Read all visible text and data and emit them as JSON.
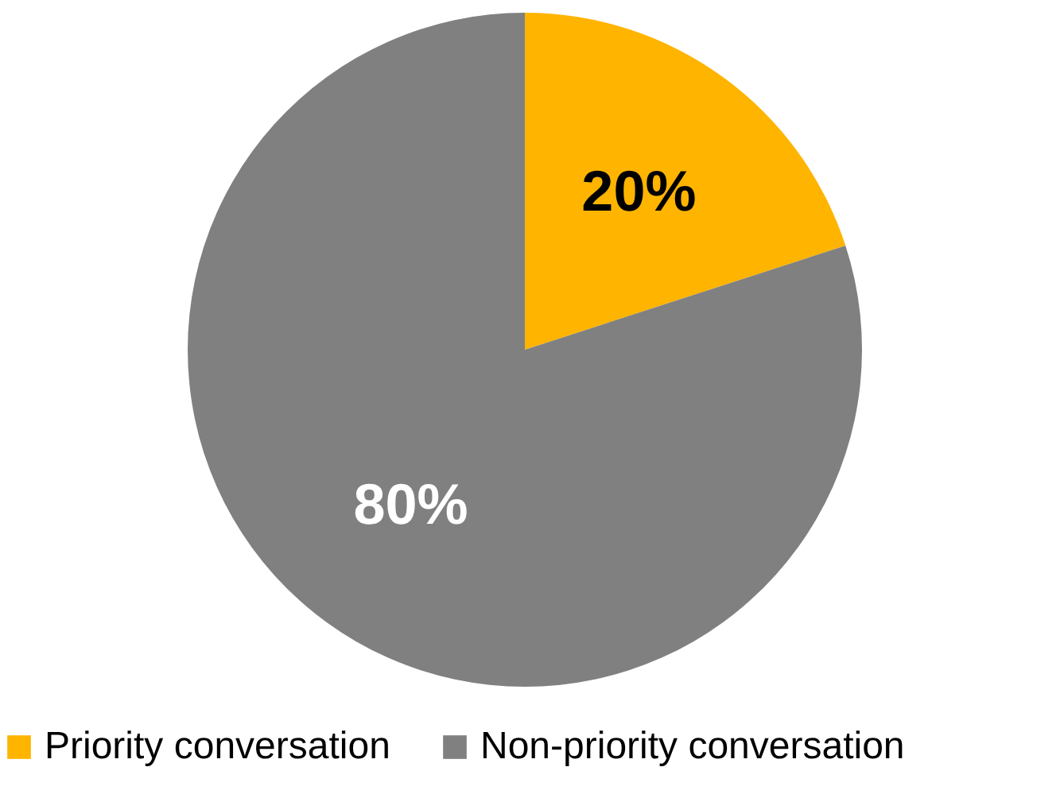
{
  "chart_data": {
    "type": "pie",
    "categories": [
      "Priority conversation",
      "Non-priority conversation"
    ],
    "values": [
      20,
      80
    ],
    "colors": [
      "#ffb400",
      "#808080"
    ],
    "value_labels": [
      "20%",
      "80%"
    ],
    "legend": "bottom"
  }
}
